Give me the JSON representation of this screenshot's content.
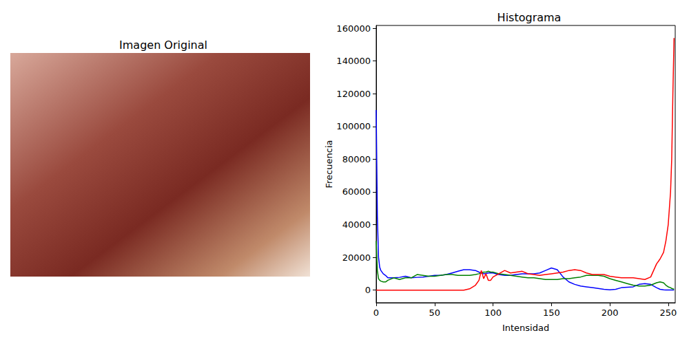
{
  "image_panel": {
    "title": "Imagen Original"
  },
  "chart_data": {
    "type": "line",
    "title": "Histograma",
    "x_label": "Intensidad",
    "y_label": "Frecuencia",
    "x": [
      0,
      1,
      2,
      3,
      4,
      6,
      8,
      10,
      15,
      20,
      25,
      30,
      35,
      40,
      45,
      50,
      55,
      60,
      65,
      70,
      75,
      80,
      85,
      88,
      90,
      92,
      94,
      96,
      98,
      100,
      105,
      110,
      115,
      120,
      125,
      130,
      135,
      140,
      145,
      150,
      155,
      160,
      165,
      170,
      175,
      180,
      185,
      190,
      195,
      200,
      205,
      210,
      215,
      220,
      225,
      230,
      235,
      240,
      243,
      246,
      248,
      250,
      252,
      253,
      254,
      255
    ],
    "series": [
      {
        "color": "blue",
        "values": [
          110000,
          45000,
          20000,
          14000,
          12000,
          10000,
          9000,
          7500,
          7500,
          7800,
          8500,
          7500,
          7800,
          8000,
          8500,
          9000,
          9000,
          9500,
          10500,
          11500,
          12500,
          12500,
          12000,
          11000,
          10500,
          10000,
          10200,
          10500,
          10500,
          10500,
          9500,
          9000,
          9000,
          9500,
          10000,
          10000,
          10000,
          10500,
          12000,
          13500,
          12500,
          8000,
          5000,
          3500,
          2500,
          2000,
          1500,
          1000,
          500,
          200,
          500,
          1500,
          1800,
          2000,
          3500,
          4000,
          3500,
          1500,
          500,
          200,
          100,
          100,
          100,
          100,
          100,
          100
        ]
      },
      {
        "color": "green",
        "values": [
          30000,
          12000,
          7000,
          6000,
          5500,
          5000,
          5000,
          6000,
          7500,
          6500,
          7500,
          7500,
          9500,
          9000,
          8500,
          8500,
          9000,
          9500,
          9500,
          9000,
          9000,
          9000,
          9500,
          10000,
          10500,
          11000,
          11000,
          11500,
          11000,
          11000,
          10000,
          9500,
          9000,
          8500,
          8000,
          7500,
          7500,
          7000,
          6500,
          6500,
          6500,
          7000,
          7000,
          7500,
          8000,
          9000,
          9000,
          9000,
          8500,
          7000,
          6000,
          5000,
          4000,
          3000,
          2500,
          2500,
          3000,
          4500,
          5000,
          4500,
          3000,
          2000,
          1500,
          1000,
          800,
          500
        ]
      },
      {
        "color": "red",
        "values": [
          0,
          0,
          0,
          0,
          0,
          0,
          0,
          0,
          0,
          0,
          0,
          0,
          0,
          0,
          0,
          0,
          0,
          0,
          0,
          0,
          0,
          800,
          3000,
          6000,
          12000,
          7000,
          10000,
          6000,
          6000,
          8000,
          10000,
          12000,
          10500,
          11000,
          11500,
          10000,
          9500,
          9000,
          9500,
          10000,
          10500,
          11000,
          12000,
          12500,
          12000,
          10500,
          9500,
          9500,
          9500,
          8500,
          8000,
          7500,
          7500,
          7500,
          7000,
          6500,
          8000,
          16000,
          19000,
          23000,
          30000,
          40000,
          60000,
          80000,
          120000,
          154000
        ]
      }
    ],
    "xlim": [
      0,
      256
    ],
    "xticks": [
      0,
      50,
      100,
      150,
      200,
      250
    ],
    "ylim": [
      -7700,
      161700
    ],
    "yticks": [
      0,
      20000,
      40000,
      60000,
      80000,
      100000,
      120000,
      140000,
      160000
    ],
    "grid": false
  }
}
